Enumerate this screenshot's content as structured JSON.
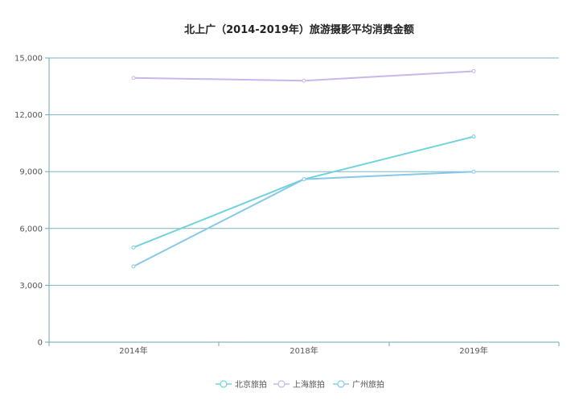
{
  "chart_data": {
    "type": "line",
    "title": "北上广（2014-2019年）旅游摄影平均消费金额",
    "categories": [
      "2014年",
      "2018年",
      "2019年"
    ],
    "ylim": [
      0,
      15000
    ],
    "yticks": [
      "0",
      "3,000",
      "6,000",
      "9,000",
      "12,000",
      "15,000"
    ],
    "ytick_values": [
      0,
      3000,
      6000,
      9000,
      12000,
      15000
    ],
    "grid": true,
    "legend_position": "bottom",
    "series": [
      {
        "name": "北京旅拍",
        "values": [
          5000,
          8600,
          10850
        ],
        "color": "#6fd3dc"
      },
      {
        "name": "上海旅拍",
        "values": [
          13950,
          13800,
          14300
        ],
        "color": "#c9b6ea"
      },
      {
        "name": "广州旅拍",
        "values": [
          4000,
          8600,
          9000
        ],
        "color": "#86c9ea"
      }
    ],
    "axis_color": "#6aa9b4",
    "grid_color": "#7fb3bd"
  }
}
